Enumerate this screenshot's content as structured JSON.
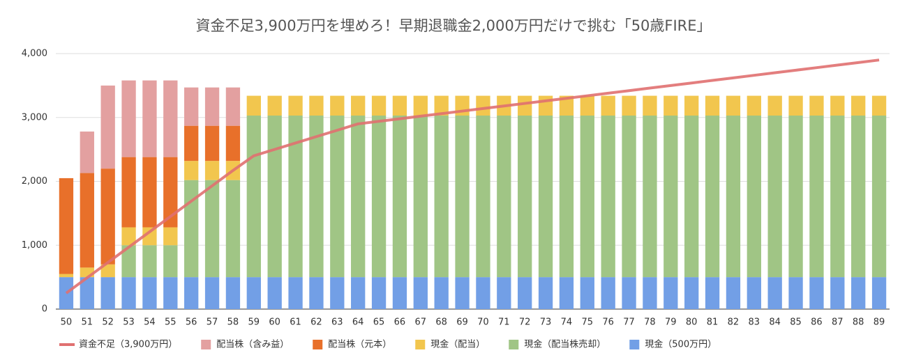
{
  "chart_data": {
    "type": "bar",
    "stacked": true,
    "title": "資金不足3,900万円を埋めろ！早期退職金2,000万円だけで挑む「50歳FIRE」",
    "categories": [
      "50",
      "51",
      "52",
      "53",
      "54",
      "55",
      "56",
      "57",
      "58",
      "59",
      "60",
      "61",
      "62",
      "63",
      "64",
      "65",
      "66",
      "67",
      "68",
      "69",
      "70",
      "71",
      "72",
      "73",
      "74",
      "75",
      "76",
      "77",
      "78",
      "79",
      "80",
      "81",
      "82",
      "83",
      "84",
      "85",
      "86",
      "87",
      "88",
      "89"
    ],
    "ylim": [
      0,
      4000
    ],
    "yticks": [
      0,
      {
        "value": 1000,
        "label": "1,000"
      },
      {
        "value": 2000,
        "label": "2,000"
      },
      {
        "value": 3000,
        "label": "3,000"
      },
      {
        "value": 4000,
        "label": "4,000"
      }
    ],
    "grid": true,
    "legend": "bottom",
    "series": [
      {
        "name": "資金不足（3,900万円）",
        "type": "line",
        "color": "#e07070",
        "values": [
          250,
          490,
          730,
          970,
          1210,
          1450,
          1690,
          1930,
          2170,
          2400,
          2500,
          2600,
          2700,
          2800,
          2900,
          2940,
          2980,
          3020,
          3060,
          3100,
          3140,
          3180,
          3220,
          3260,
          3300,
          3340,
          3380,
          3420,
          3460,
          3500,
          3540,
          3580,
          3620,
          3660,
          3700,
          3740,
          3780,
          3820,
          3860,
          3900
        ]
      },
      {
        "name": "配当株（含み益）",
        "type": "bar",
        "color": "#e3a0a0",
        "values": [
          0,
          650,
          1300,
          1200,
          1200,
          1200,
          600,
          600,
          600,
          0,
          0,
          0,
          0,
          0,
          0,
          0,
          0,
          0,
          0,
          0,
          0,
          0,
          0,
          0,
          0,
          0,
          0,
          0,
          0,
          0,
          0,
          0,
          0,
          0,
          0,
          0,
          0,
          0,
          0,
          0
        ]
      },
      {
        "name": "配当株（元本）",
        "type": "bar",
        "color": "#e8702a",
        "values": [
          1500,
          1480,
          1500,
          1100,
          1100,
          1100,
          550,
          550,
          550,
          0,
          0,
          0,
          0,
          0,
          0,
          0,
          0,
          0,
          0,
          0,
          0,
          0,
          0,
          0,
          0,
          0,
          0,
          0,
          0,
          0,
          0,
          0,
          0,
          0,
          0,
          0,
          0,
          0,
          0,
          0
        ]
      },
      {
        "name": "現金（配当）",
        "type": "bar",
        "color": "#f2c64e",
        "values": [
          50,
          150,
          200,
          280,
          280,
          280,
          300,
          300,
          300,
          310,
          310,
          310,
          310,
          310,
          310,
          310,
          310,
          310,
          310,
          310,
          310,
          310,
          310,
          310,
          310,
          310,
          310,
          310,
          310,
          310,
          310,
          310,
          310,
          310,
          310,
          310,
          310,
          310,
          310,
          310
        ]
      },
      {
        "name": "現金（配当株売却）",
        "type": "bar",
        "color": "#a0c585",
        "values": [
          0,
          0,
          0,
          500,
          500,
          500,
          1520,
          1520,
          1520,
          2530,
          2530,
          2530,
          2530,
          2530,
          2530,
          2530,
          2530,
          2530,
          2530,
          2530,
          2530,
          2530,
          2530,
          2530,
          2530,
          2530,
          2530,
          2530,
          2530,
          2530,
          2530,
          2530,
          2530,
          2530,
          2530,
          2530,
          2530,
          2530,
          2530,
          2530
        ]
      },
      {
        "name": "現金（500万円）",
        "type": "bar",
        "color": "#729fe6",
        "values": [
          500,
          500,
          500,
          500,
          500,
          500,
          500,
          500,
          500,
          500,
          500,
          500,
          500,
          500,
          500,
          500,
          500,
          500,
          500,
          500,
          500,
          500,
          500,
          500,
          500,
          500,
          500,
          500,
          500,
          500,
          500,
          500,
          500,
          500,
          500,
          500,
          500,
          500,
          500,
          500
        ]
      }
    ]
  }
}
